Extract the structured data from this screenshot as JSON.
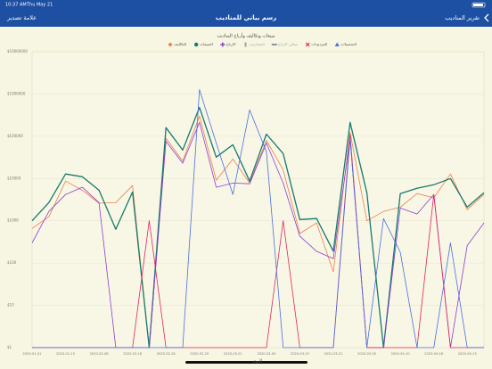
{
  "status_bar": {
    "time": "10:37 AM",
    "date": "Thu May 21"
  },
  "header": {
    "title": "رسم بياني للمناديب",
    "left": "علامة تصدير",
    "right": "تقرير المناديب"
  },
  "chart_data": {
    "type": "line",
    "title": "مبيعات وتكاليف وأرباح المناديب",
    "x_label": "اليوم",
    "log_scale": true,
    "grid": true,
    "categories": [
      "2020-01-01",
      null,
      "2020-01-15",
      null,
      "2020-02-08",
      null,
      "2020-02-18",
      null,
      "2020-02-26",
      null,
      "2020-02-29",
      null,
      "2020-03-01",
      null,
      "2020-03-09",
      null,
      "2020-03-15",
      null,
      "2020-03-21",
      null,
      "2020-03-30",
      null,
      "2020-04-10",
      null,
      "2020-04-18",
      null,
      "2020-05-13",
      null
    ],
    "ylim": [
      1,
      10000000
    ],
    "yticks": [
      {
        "value": 1,
        "label": "$1"
      },
      {
        "value": 10,
        "label": "$10"
      },
      {
        "value": 100,
        "label": "$100"
      },
      {
        "value": 1000,
        "label": "$1000"
      },
      {
        "value": 10000,
        "label": "$10000"
      },
      {
        "value": 100000,
        "label": "$100000"
      },
      {
        "value": 1000000,
        "label": "$1000000"
      },
      {
        "value": 10000000,
        "label": "$10000000"
      }
    ],
    "series": [
      {
        "name": "التكاليف",
        "color": "#f07d4a",
        "marker": "diamond",
        "values": [
          660,
          1240,
          8700,
          5300,
          2600,
          2700,
          6800,
          1,
          89000,
          26000,
          300000,
          9100,
          29000,
          7800,
          80000,
          16000,
          500,
          890,
          62,
          124000,
          1000,
          1660,
          2100,
          4400,
          3500,
          12800,
          1830,
          4200
        ]
      },
      {
        "name": "المبيعات",
        "color": "#17796c",
        "marker": "circle",
        "values": [
          1000,
          2700,
          12800,
          11000,
          5300,
          630,
          4800,
          1,
          160000,
          47000,
          480000,
          32000,
          63000,
          8700,
          112000,
          39000,
          1070,
          1130,
          190,
          213000,
          4600,
          1,
          4400,
          5900,
          7100,
          10000,
          2100,
          4600
        ]
      },
      {
        "name": "الارباح",
        "color": "#8a3fd1",
        "marker": "plus",
        "values": [
          300,
          1660,
          4200,
          6200,
          2700,
          1,
          1,
          1,
          76000,
          23000,
          213000,
          6200,
          7800,
          7500,
          69000,
          7800,
          430,
          190,
          127,
          89000,
          1,
          1,
          2000,
          1450,
          4200,
          1,
          260,
          890
        ]
      },
      {
        "name": "المصاريف",
        "color": "#a0a0a0",
        "marker": "bar",
        "hidden": true,
        "values": [
          null,
          null,
          null,
          null,
          null,
          null,
          null,
          null,
          null,
          null,
          null,
          null,
          null,
          null,
          null,
          null,
          null,
          null,
          null,
          null,
          null,
          null,
          null,
          null,
          null,
          null,
          null,
          null
        ]
      },
      {
        "name": "صافي الارباح",
        "color": "#5a6f8a",
        "marker": "dash",
        "hidden": true,
        "values": [
          null,
          null,
          null,
          null,
          null,
          null,
          null,
          null,
          null,
          null,
          null,
          null,
          null,
          null,
          null,
          null,
          null,
          null,
          null,
          null,
          null,
          null,
          null,
          null,
          null,
          null,
          null,
          null
        ]
      },
      {
        "name": "المردودات",
        "color": "#e0245e",
        "marker": "x",
        "values": [
          1,
          1,
          1,
          1,
          1,
          1,
          1,
          1000,
          1,
          1,
          1,
          1,
          1,
          1,
          1,
          1000,
          1,
          1,
          1,
          112000,
          1,
          1,
          1,
          1,
          4200,
          1,
          1,
          1
        ]
      },
      {
        "name": "التحصيلات",
        "color": "#4a6fe0",
        "marker": "triangle",
        "values": [
          1,
          1,
          1,
          1,
          1,
          1,
          1,
          1,
          1,
          1,
          1270000,
          69000,
          4200,
          420000,
          43000,
          1,
          1,
          1,
          1,
          89000,
          1,
          1130,
          180,
          1,
          1,
          300,
          1,
          1
        ]
      }
    ]
  }
}
